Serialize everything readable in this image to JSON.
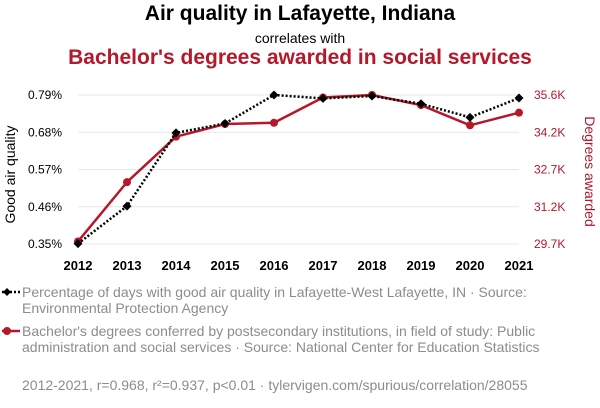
{
  "title": "Air quality in Lafayette, Indiana",
  "subtitle": "correlates with",
  "title2": "Bachelor's degrees awarded in social services",
  "legend": {
    "series1": "Percentage of days with good air quality in Lafayette-West Lafayette, IN · Source: Environmental Protection Agency",
    "series2": "Bachelor's degrees conferred by postsecondary institutions, in field of study: Public administration and social services · Source: National Center for Education Statistics"
  },
  "footer": "2012-2021, r=0.968, r²=0.937, p<0.01 · tylervigen.com/spurious/correlation/28055",
  "colors": {
    "series1": "#000000",
    "series2": "#b5172b",
    "grid": "#e8e8e8"
  },
  "chart_data": {
    "type": "line",
    "x": [
      2012,
      2013,
      2014,
      2015,
      2016,
      2017,
      2018,
      2019,
      2020,
      2021
    ],
    "series": [
      {
        "name": "Percentage of days with good air quality in Lafayette-West Lafayette, IN",
        "axis": "left",
        "style": "dotted",
        "marker": "diamond",
        "values": [
          0.351,
          0.462,
          0.678,
          0.706,
          0.79,
          0.78,
          0.787,
          0.764,
          0.724,
          0.781
        ]
      },
      {
        "name": "Bachelor's degrees conferred in Public administration and social services",
        "axis": "right",
        "style": "solid",
        "marker": "circle",
        "values": [
          29800,
          32150,
          33950,
          34450,
          34500,
          35500,
          35600,
          35200,
          34400,
          34900
        ]
      }
    ],
    "ylabel_left": "Good air quality",
    "ylabel_right": "Degrees awarded",
    "yticks_left": [
      "0.35%",
      "0.46%",
      "0.57%",
      "0.68%",
      "0.79%"
    ],
    "yticks_left_values": [
      0.35,
      0.46,
      0.57,
      0.68,
      0.79
    ],
    "yticks_right": [
      "29.7K",
      "31.2K",
      "32.7K",
      "34.2K",
      "35.6K"
    ],
    "yticks_right_values": [
      29700,
      31175,
      32650,
      34125,
      35600
    ],
    "ylim_left": [
      0.35,
      0.79
    ],
    "ylim_right": [
      29700,
      35600
    ],
    "xticks": [
      "2012",
      "2013",
      "2014",
      "2015",
      "2016",
      "2017",
      "2018",
      "2019",
      "2020",
      "2021"
    ]
  }
}
